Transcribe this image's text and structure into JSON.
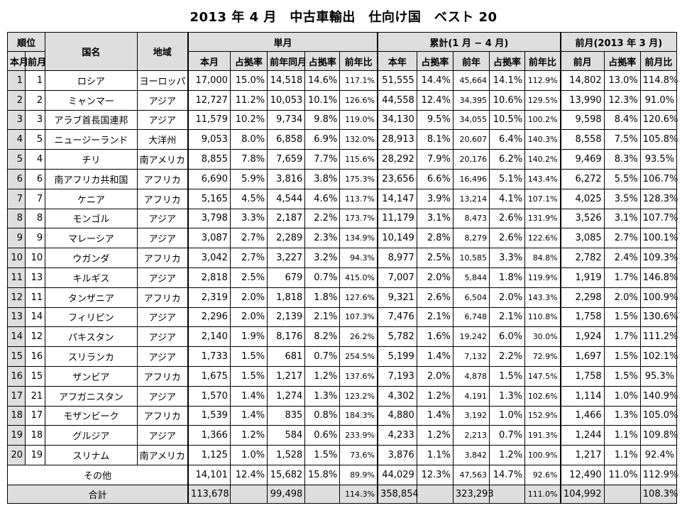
{
  "title": "2013 年 4 月　中古車輸出　仕向け国　ベスト 20",
  "headers": {
    "rank": "順位",
    "rank_this": "本月",
    "rank_prev": "前月",
    "country": "国名",
    "region": "地域",
    "monthly": "単月",
    "cumulative": "累計(1 月 − 4 月)",
    "last_month": "前月(2013 年 3 月)",
    "m_this": "本月",
    "m_share": "占拠率",
    "m_prev_year": "前年同月",
    "m_share2": "占拠率",
    "m_yoy": "前年比",
    "c_this": "本年",
    "c_share": "占拠率",
    "c_prev": "前年",
    "c_share2": "占拠率",
    "c_yoy": "前年比",
    "l_month": "前月",
    "l_share": "占拠率",
    "l_mom": "前月比"
  },
  "rows": [
    {
      "rank": "1",
      "prev": "1",
      "country": "ロシア",
      "region": "ヨーロッパ",
      "m": "17,000",
      "ms": "15.0%",
      "pm": "14,518",
      "pms": "14.6%",
      "yoy": "117.1%",
      "c": "51,555",
      "cs": "14.4%",
      "cp": "45,664",
      "cps": "14.1%",
      "cyoy": "112.9%",
      "l": "14,802",
      "ls": "13.0%",
      "lm": "114.8%"
    },
    {
      "rank": "2",
      "prev": "2",
      "country": "ミャンマー",
      "region": "アジア",
      "m": "12,727",
      "ms": "11.2%",
      "pm": "10,053",
      "pms": "10.1%",
      "yoy": "126.6%",
      "c": "44,558",
      "cs": "12.4%",
      "cp": "34,395",
      "cps": "10.6%",
      "cyoy": "129.5%",
      "l": "13,990",
      "ls": "12.3%",
      "lm": "91.0%"
    },
    {
      "rank": "3",
      "prev": "3",
      "country": "アラブ首長国連邦",
      "region": "アジア",
      "m": "11,579",
      "ms": "10.2%",
      "pm": "9,734",
      "pms": "9.8%",
      "yoy": "119.0%",
      "c": "34,130",
      "cs": "9.5%",
      "cp": "34,055",
      "cps": "10.5%",
      "cyoy": "100.2%",
      "l": "9,598",
      "ls": "8.4%",
      "lm": "120.6%"
    },
    {
      "rank": "4",
      "prev": "5",
      "country": "ニュージーランド",
      "region": "大洋州",
      "m": "9,053",
      "ms": "8.0%",
      "pm": "6,858",
      "pms": "6.9%",
      "yoy": "132.0%",
      "c": "28,913",
      "cs": "8.1%",
      "cp": "20,607",
      "cps": "6.4%",
      "cyoy": "140.3%",
      "l": "8,558",
      "ls": "7.5%",
      "lm": "105.8%"
    },
    {
      "rank": "5",
      "prev": "4",
      "country": "チリ",
      "region": "南アメリカ",
      "m": "8,855",
      "ms": "7.8%",
      "pm": "7,659",
      "pms": "7.7%",
      "yoy": "115.6%",
      "c": "28,292",
      "cs": "7.9%",
      "cp": "20,176",
      "cps": "6.2%",
      "cyoy": "140.2%",
      "l": "9,469",
      "ls": "8.3%",
      "lm": "93.5%"
    },
    {
      "rank": "6",
      "prev": "6",
      "country": "南アフリカ共和国",
      "region": "アフリカ",
      "m": "6,690",
      "ms": "5.9%",
      "pm": "3,816",
      "pms": "3.8%",
      "yoy": "175.3%",
      "c": "23,656",
      "cs": "6.6%",
      "cp": "16,496",
      "cps": "5.1%",
      "cyoy": "143.4%",
      "l": "6,272",
      "ls": "5.5%",
      "lm": "106.7%"
    },
    {
      "rank": "7",
      "prev": "7",
      "country": "ケニア",
      "region": "アフリカ",
      "m": "5,165",
      "ms": "4.5%",
      "pm": "4,544",
      "pms": "4.6%",
      "yoy": "113.7%",
      "c": "14,147",
      "cs": "3.9%",
      "cp": "13,214",
      "cps": "4.1%",
      "cyoy": "107.1%",
      "l": "4,025",
      "ls": "3.5%",
      "lm": "128.3%"
    },
    {
      "rank": "8",
      "prev": "8",
      "country": "モンゴル",
      "region": "アジア",
      "m": "3,798",
      "ms": "3.3%",
      "pm": "2,187",
      "pms": "2.2%",
      "yoy": "173.7%",
      "c": "11,179",
      "cs": "3.1%",
      "cp": "8,473",
      "cps": "2.6%",
      "cyoy": "131.9%",
      "l": "3,526",
      "ls": "3.1%",
      "lm": "107.7%"
    },
    {
      "rank": "9",
      "prev": "9",
      "country": "マレーシア",
      "region": "アジア",
      "m": "3,087",
      "ms": "2.7%",
      "pm": "2,289",
      "pms": "2.3%",
      "yoy": "134.9%",
      "c": "10,149",
      "cs": "2.8%",
      "cp": "8,279",
      "cps": "2.6%",
      "cyoy": "122.6%",
      "l": "3,085",
      "ls": "2.7%",
      "lm": "100.1%"
    },
    {
      "rank": "10",
      "prev": "10",
      "country": "ウガンダ",
      "region": "アフリカ",
      "m": "3,042",
      "ms": "2.7%",
      "pm": "3,227",
      "pms": "3.2%",
      "yoy": "94.3%",
      "c": "8,977",
      "cs": "2.5%",
      "cp": "10,585",
      "cps": "3.3%",
      "cyoy": "84.8%",
      "l": "2,782",
      "ls": "2.4%",
      "lm": "109.3%"
    },
    {
      "rank": "11",
      "prev": "13",
      "country": "キルギス",
      "region": "アジア",
      "m": "2,818",
      "ms": "2.5%",
      "pm": "679",
      "pms": "0.7%",
      "yoy": "415.0%",
      "c": "7,007",
      "cs": "2.0%",
      "cp": "5,844",
      "cps": "1.8%",
      "cyoy": "119.9%",
      "l": "1,919",
      "ls": "1.7%",
      "lm": "146.8%"
    },
    {
      "rank": "12",
      "prev": "11",
      "country": "タンザニア",
      "region": "アフリカ",
      "m": "2,319",
      "ms": "2.0%",
      "pm": "1,818",
      "pms": "1.8%",
      "yoy": "127.6%",
      "c": "9,321",
      "cs": "2.6%",
      "cp": "6,504",
      "cps": "2.0%",
      "cyoy": "143.3%",
      "l": "2,298",
      "ls": "2.0%",
      "lm": "100.9%"
    },
    {
      "rank": "13",
      "prev": "14",
      "country": "フィリピン",
      "region": "アジア",
      "m": "2,296",
      "ms": "2.0%",
      "pm": "2,139",
      "pms": "2.1%",
      "yoy": "107.3%",
      "c": "7,476",
      "cs": "2.1%",
      "cp": "6,748",
      "cps": "2.1%",
      "cyoy": "110.8%",
      "l": "1,758",
      "ls": "1.5%",
      "lm": "130.6%"
    },
    {
      "rank": "14",
      "prev": "12",
      "country": "パキスタン",
      "region": "アジア",
      "m": "2,140",
      "ms": "1.9%",
      "pm": "8,176",
      "pms": "8.2%",
      "yoy": "26.2%",
      "c": "5,782",
      "cs": "1.6%",
      "cp": "19,242",
      "cps": "6.0%",
      "cyoy": "30.0%",
      "l": "1,924",
      "ls": "1.7%",
      "lm": "111.2%"
    },
    {
      "rank": "15",
      "prev": "16",
      "country": "スリランカ",
      "region": "アジア",
      "m": "1,733",
      "ms": "1.5%",
      "pm": "681",
      "pms": "0.7%",
      "yoy": "254.5%",
      "c": "5,199",
      "cs": "1.4%",
      "cp": "7,132",
      "cps": "2.2%",
      "cyoy": "72.9%",
      "l": "1,697",
      "ls": "1.5%",
      "lm": "102.1%"
    },
    {
      "rank": "16",
      "prev": "15",
      "country": "ザンビア",
      "region": "アフリカ",
      "m": "1,675",
      "ms": "1.5%",
      "pm": "1,217",
      "pms": "1.2%",
      "yoy": "137.6%",
      "c": "7,193",
      "cs": "2.0%",
      "cp": "4,878",
      "cps": "1.5%",
      "cyoy": "147.5%",
      "l": "1,758",
      "ls": "1.5%",
      "lm": "95.3%"
    },
    {
      "rank": "17",
      "prev": "21",
      "country": "アフガニスタン",
      "region": "アジア",
      "m": "1,570",
      "ms": "1.4%",
      "pm": "1,274",
      "pms": "1.3%",
      "yoy": "123.2%",
      "c": "4,302",
      "cs": "1.2%",
      "cp": "4,191",
      "cps": "1.3%",
      "cyoy": "102.6%",
      "l": "1,114",
      "ls": "1.0%",
      "lm": "140.9%"
    },
    {
      "rank": "18",
      "prev": "17",
      "country": "モザンビーク",
      "region": "アフリカ",
      "m": "1,539",
      "ms": "1.4%",
      "pm": "835",
      "pms": "0.8%",
      "yoy": "184.3%",
      "c": "4,880",
      "cs": "1.4%",
      "cp": "3,192",
      "cps": "1.0%",
      "cyoy": "152.9%",
      "l": "1,466",
      "ls": "1.3%",
      "lm": "105.0%"
    },
    {
      "rank": "19",
      "prev": "18",
      "country": "グルジア",
      "region": "アジア",
      "m": "1,366",
      "ms": "1.2%",
      "pm": "584",
      "pms": "0.6%",
      "yoy": "233.9%",
      "c": "4,233",
      "cs": "1.2%",
      "cp": "2,213",
      "cps": "0.7%",
      "cyoy": "191.3%",
      "l": "1,244",
      "ls": "1.1%",
      "lm": "109.8%"
    },
    {
      "rank": "20",
      "prev": "19",
      "country": "スリナム",
      "region": "南アメリカ",
      "m": "1,125",
      "ms": "1.0%",
      "pm": "1,528",
      "pms": "1.5%",
      "yoy": "73.6%",
      "c": "3,876",
      "cs": "1.1%",
      "cp": "3,842",
      "cps": "1.2%",
      "cyoy": "100.9%",
      "l": "1,217",
      "ls": "1.1%",
      "lm": "92.4%"
    }
  ],
  "other": {
    "label": "その他",
    "m": "14,101",
    "ms": "12.4%",
    "pm": "15,682",
    "pms": "15.8%",
    "yoy": "89.9%",
    "c": "44,029",
    "cs": "12.3%",
    "cp": "47,563",
    "cps": "14.7%",
    "cyoy": "92.6%",
    "l": "12,490",
    "ls": "11.0%",
    "lm": "112.9%"
  },
  "total": {
    "label": "合計",
    "m": "113,678",
    "pm": "99,498",
    "yoy": "114.3%",
    "c": "358,854",
    "cp": "323,293",
    "cyoy": "111.0%",
    "l": "104,992",
    "lm": "108.3%"
  }
}
